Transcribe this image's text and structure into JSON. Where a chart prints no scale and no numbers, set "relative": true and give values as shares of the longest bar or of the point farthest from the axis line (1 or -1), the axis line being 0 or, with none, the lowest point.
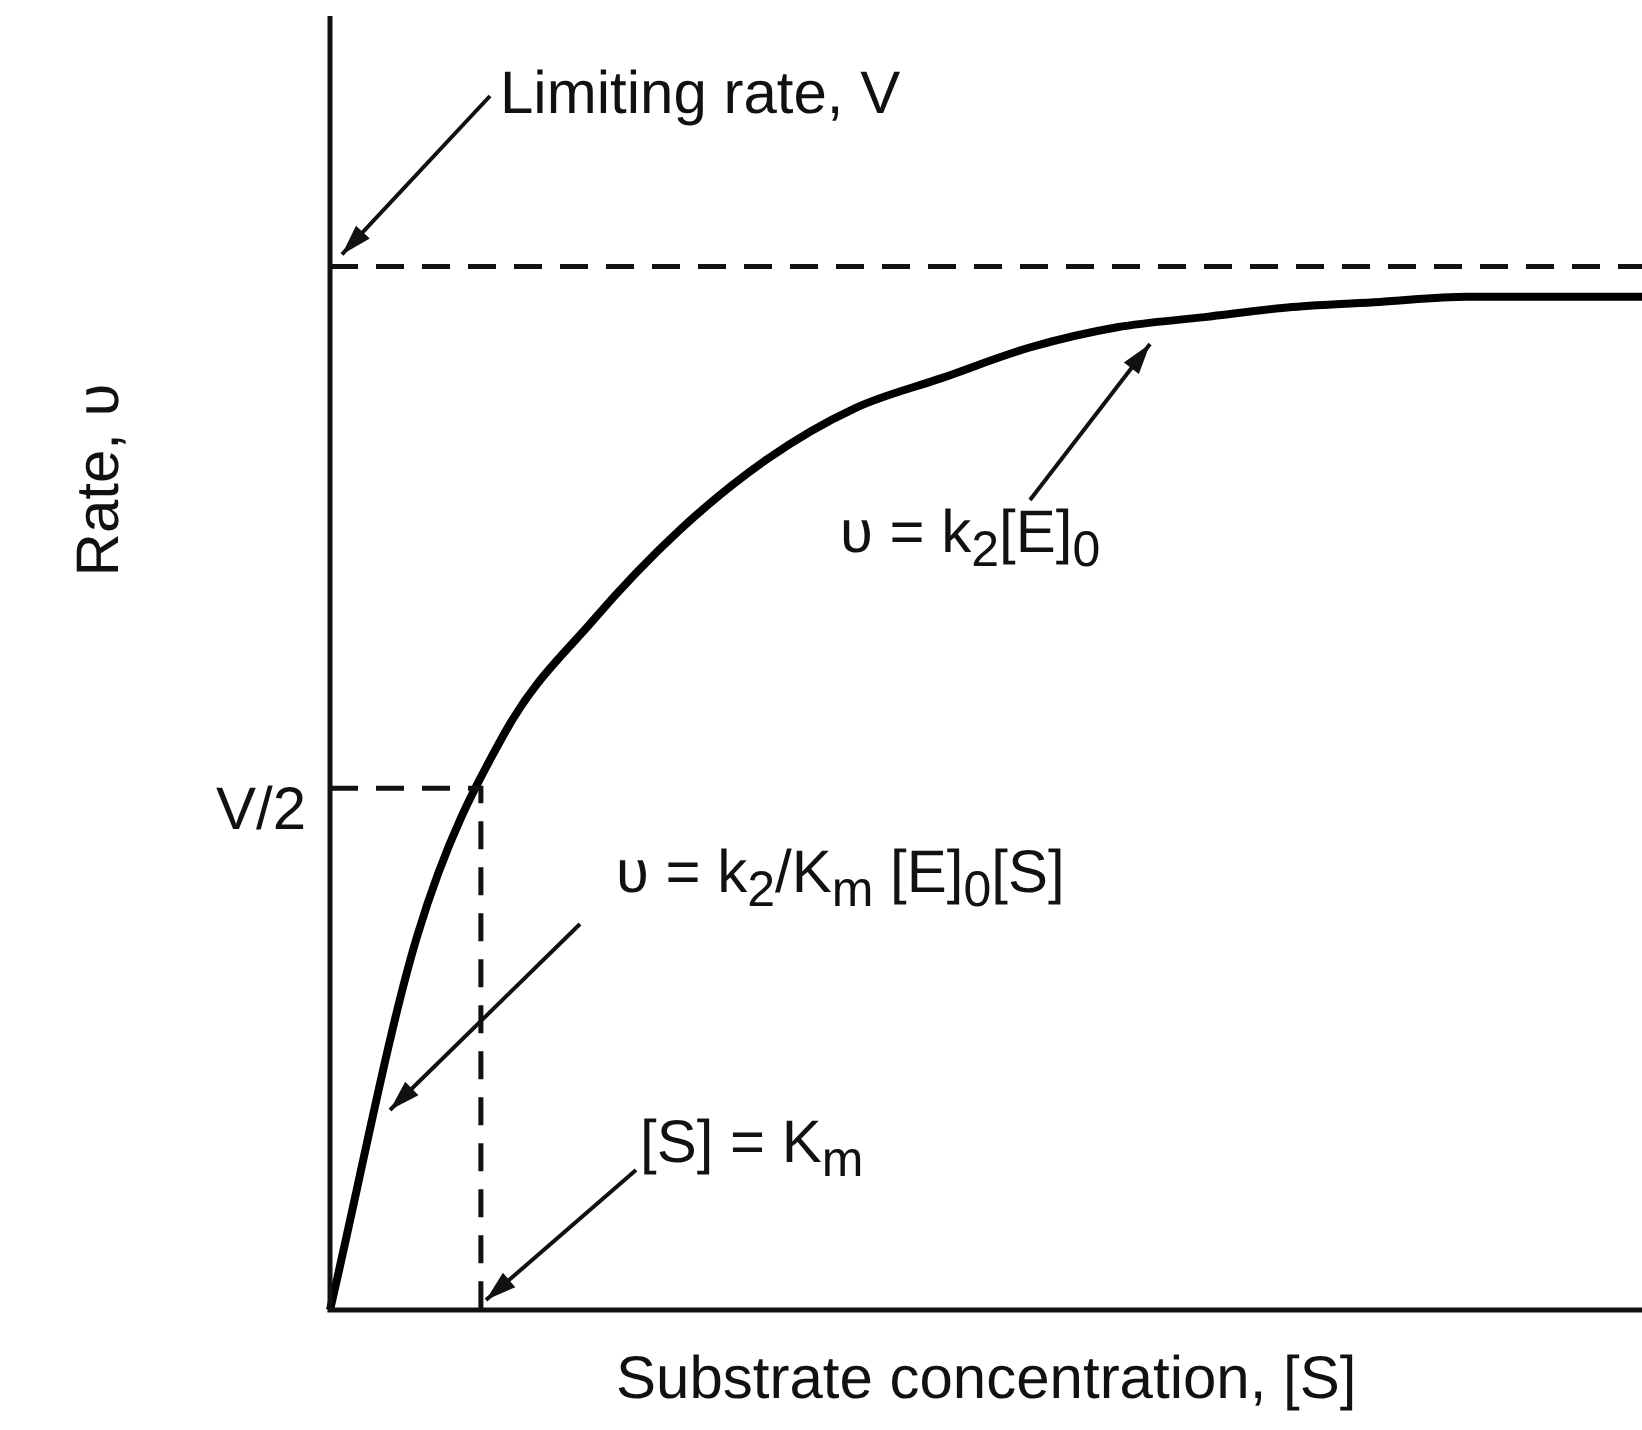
{
  "chart_data": {
    "type": "line",
    "relative": true,
    "xlabel": "Substrate concentration, [S]",
    "ylabel": "Rate, υ",
    "categories": [
      null,
      null,
      null,
      null,
      null,
      null,
      null,
      null,
      null,
      null,
      null,
      null,
      null,
      null,
      null,
      null
    ],
    "series": [
      {
        "color": "#000000",
        "values": [
          0,
          0.37,
          0.57,
          0.68,
          0.77,
          0.84,
          0.89,
          0.92,
          0.95,
          0.97,
          0.98,
          0.99,
          0.995,
          1,
          1,
          1
        ]
      }
    ],
    "ref_lines": [
      {
        "axis": "y",
        "value": 1.03,
        "label": "Limiting rate, V",
        "line_style": "dashed"
      },
      {
        "axis": "y",
        "value": 0.515,
        "label": "V/2",
        "line_style": "dashed"
      }
    ],
    "annotations": [
      "υ = k$_{2}$[E]$_{0}$",
      "υ = k$_{2}$/K$_{m}$ [E]$_{0}$[S]",
      "[S] = K$_{m}$"
    ]
  }
}
